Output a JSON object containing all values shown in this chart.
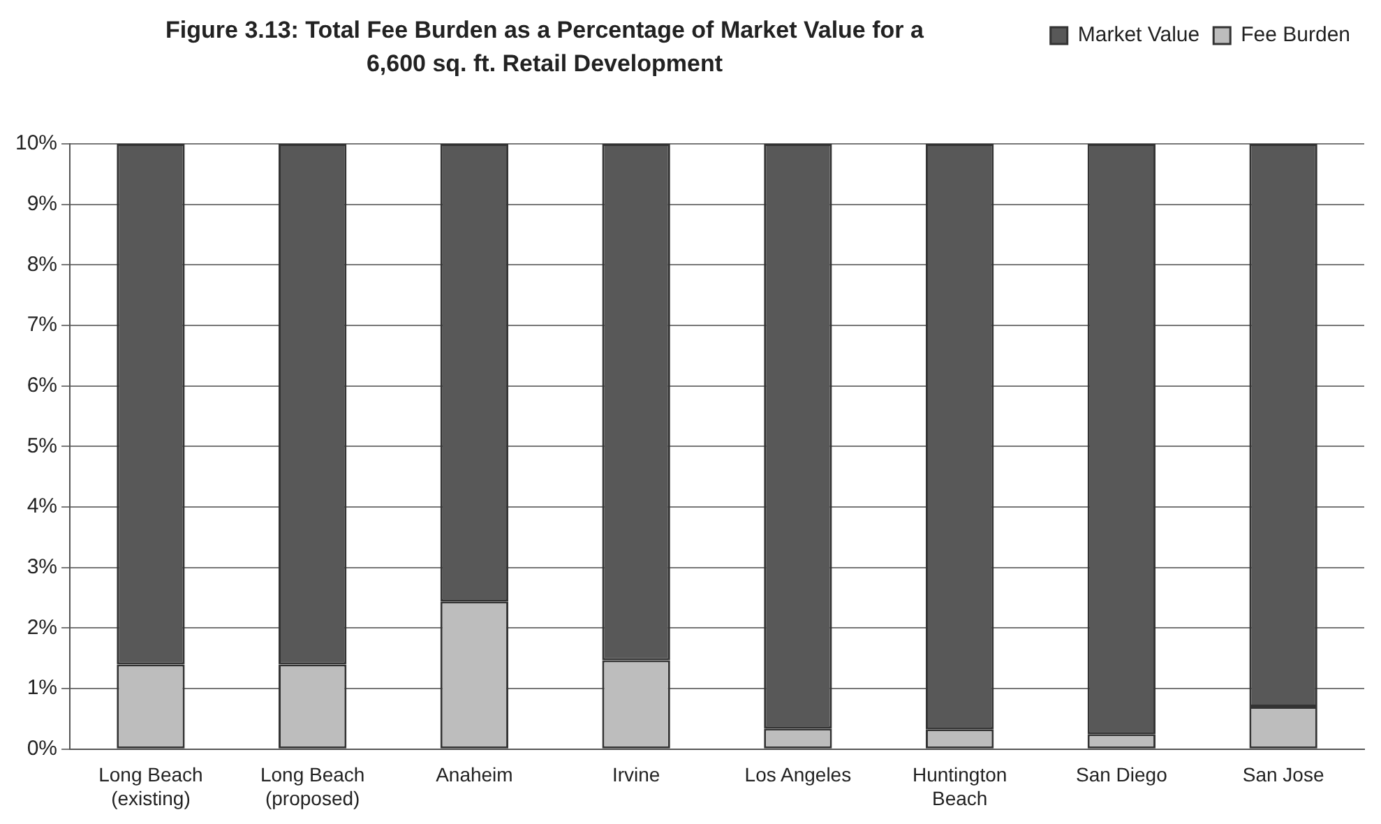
{
  "chart_data": {
    "type": "bar",
    "stacked": true,
    "title": "Figure 3.13: Total Fee Burden as a Percentage of Market Value for a 6,600 sq. ft. Retail Development",
    "categories": [
      "Long Beach (existing)",
      "Long Beach (proposed)",
      "Anaheim",
      "Irvine",
      "Los Angeles",
      "Huntington Beach",
      "San Diego",
      "San Jose"
    ],
    "series": [
      {
        "name": "Fee Burden",
        "color": "#bdbdbd",
        "values": [
          1.4,
          1.4,
          2.44,
          1.47,
          0.34,
          0.33,
          0.25,
          0.7
        ]
      },
      {
        "name": "Market Value",
        "color": "#585858",
        "values": [
          8.6,
          8.6,
          7.56,
          8.53,
          9.66,
          9.67,
          9.75,
          9.3
        ]
      }
    ],
    "ylim": [
      0,
      10
    ],
    "yticks": [
      {
        "value": 0,
        "label": "0%"
      },
      {
        "value": 1,
        "label": "1%"
      },
      {
        "value": 2,
        "label": "2%"
      },
      {
        "value": 3,
        "label": "3%"
      },
      {
        "value": 4,
        "label": "4%"
      },
      {
        "value": 5,
        "label": "5%"
      },
      {
        "value": 6,
        "label": "6%"
      },
      {
        "value": 7,
        "label": "7%"
      },
      {
        "value": 8,
        "label": "8%"
      },
      {
        "value": 9,
        "label": "9%"
      },
      {
        "value": 10,
        "label": "10%"
      }
    ],
    "grid": "y",
    "legend": "top right"
  }
}
